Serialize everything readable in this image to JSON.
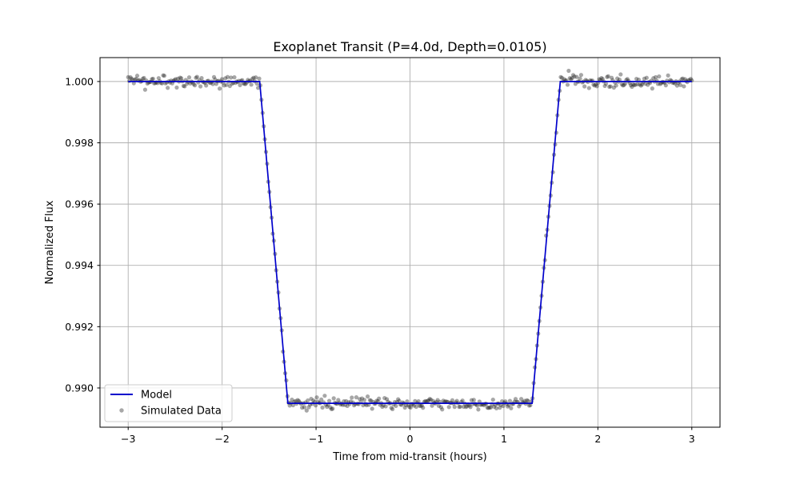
{
  "chart_data": {
    "type": "line",
    "title": "Exoplanet Transit (P=4.0d, Depth=0.0105)",
    "xlabel": "Time from mid-transit (hours)",
    "ylabel": "Normalized Flux",
    "xlim": [
      -3.3,
      3.3
    ],
    "ylim": [
      0.98872,
      1.00078
    ],
    "x_ticks": [
      -3,
      -2,
      -1,
      0,
      1,
      2,
      3
    ],
    "x_tick_labels": [
      "−3",
      "−2",
      "−1",
      "0",
      "1",
      "2",
      "3"
    ],
    "y_ticks": [
      0.99,
      0.992,
      0.994,
      0.996,
      0.998,
      1.0
    ],
    "y_tick_labels": [
      "0.990",
      "0.992",
      "0.994",
      "0.996",
      "0.998",
      "1.000"
    ],
    "grid": true,
    "legend_position": "bottom-left",
    "series": [
      {
        "name": "Model",
        "kind": "line",
        "color": "#0000cc",
        "x": [
          -3.0,
          -1.6,
          -1.3,
          1.3,
          1.6,
          3.0
        ],
        "y": [
          1.0,
          1.0,
          0.9895,
          0.9895,
          1.0,
          1.0
        ]
      },
      {
        "name": "Simulated Data",
        "kind": "scatter",
        "color": "#222222",
        "x_range": [
          -3.0,
          3.0
        ],
        "n_points": 500,
        "noise_std": 0.0001,
        "follows": "Model"
      }
    ]
  }
}
